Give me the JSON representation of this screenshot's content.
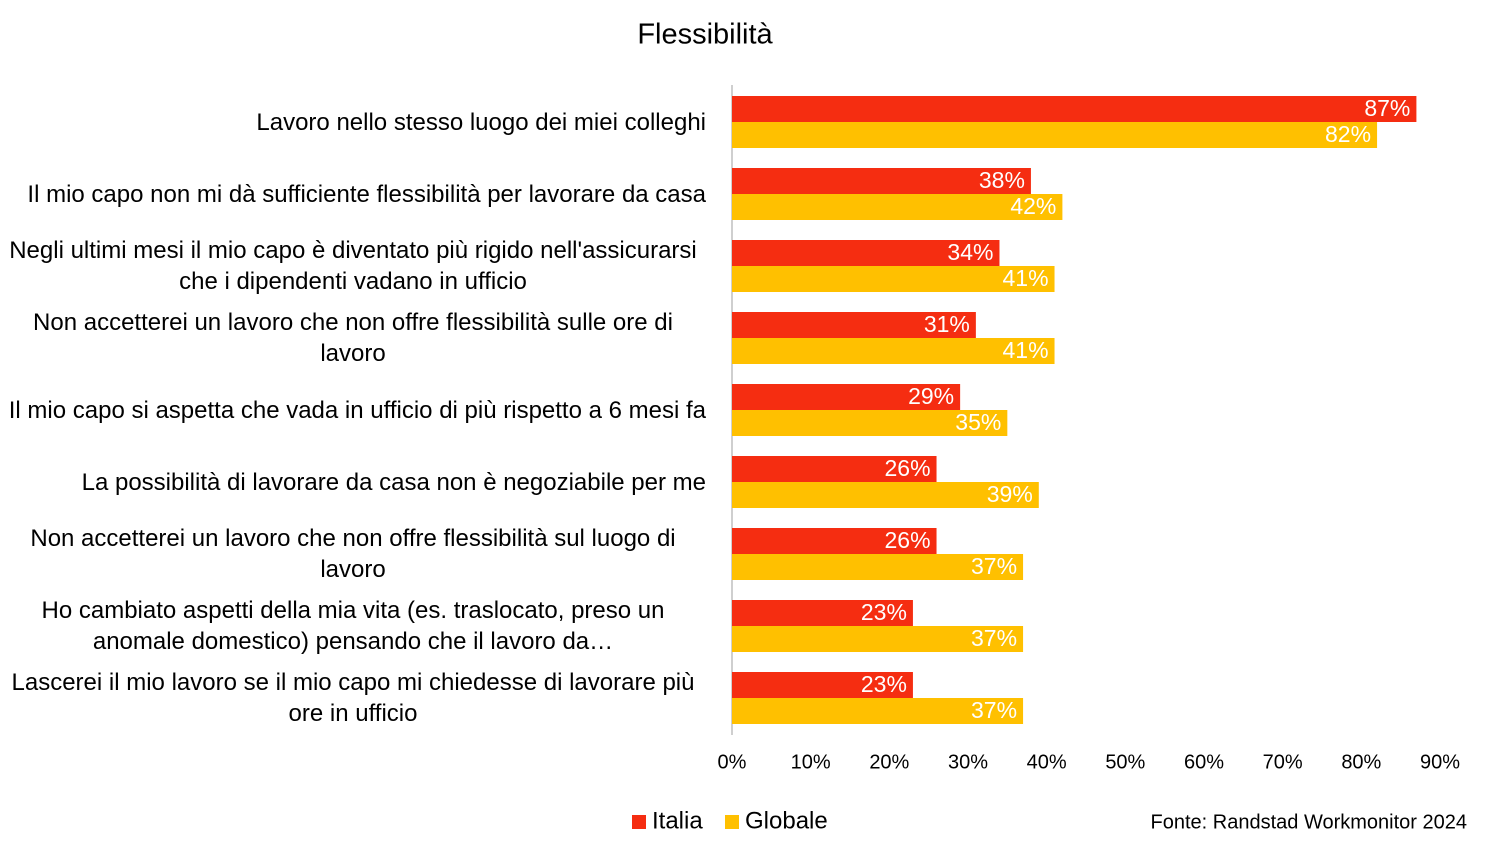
{
  "chart_data": {
    "type": "bar",
    "orientation": "horizontal",
    "title": "Flessibilità",
    "categories": [
      "Lavoro nello stesso luogo dei miei colleghi",
      "Il mio capo non mi dà sufficiente flessibilità per lavorare da casa",
      "Negli ultimi mesi il mio capo è diventato più rigido nell'assicurarsi che i dipendenti vadano in ufficio",
      "Non accetterei un lavoro che non offre flessibilità sulle ore di lavoro",
      "Il mio capo si aspetta che vada in ufficio di più rispetto a 6 mesi fa",
      "La possibilità di lavorare da casa non è negoziabile per me",
      "Non accetterei un lavoro che non offre flessibilità sul luogo di lavoro",
      "Ho cambiato aspetti della mia vita (es. traslocato, preso un anomale domestico) pensando che il lavoro da…",
      "Lascerei il mio lavoro se il mio capo mi chiedesse di lavorare più ore in ufficio"
    ],
    "series": [
      {
        "name": "Italia",
        "color": "#f52d11",
        "values": [
          87,
          38,
          34,
          31,
          29,
          26,
          26,
          23,
          23
        ],
        "value_labels": [
          "87%",
          "38%",
          "34%",
          "31%",
          "29%",
          "26%",
          "26%",
          "23%",
          "23%"
        ]
      },
      {
        "name": "Globale",
        "color": "#ffc000",
        "values": [
          82,
          42,
          41,
          41,
          35,
          39,
          37,
          37,
          37
        ],
        "value_labels": [
          "82%",
          "42%",
          "41%",
          "41%",
          "35%",
          "39%",
          "37%",
          "37%",
          "37%"
        ]
      }
    ],
    "xlim": [
      0,
      90
    ],
    "xticks": [
      {
        "value": 0,
        "label": "0%"
      },
      {
        "value": 10,
        "label": "10%"
      },
      {
        "value": 20,
        "label": "20%"
      },
      {
        "value": 30,
        "label": "30%"
      },
      {
        "value": 40,
        "label": "40%"
      },
      {
        "value": 50,
        "label": "50%"
      },
      {
        "value": 60,
        "label": "60%"
      },
      {
        "value": 70,
        "label": "70%"
      },
      {
        "value": 80,
        "label": "80%"
      },
      {
        "value": 90,
        "label": "90%"
      }
    ],
    "legend": "bottom",
    "source": "Fonte: Randstad Workmonitor 2024"
  }
}
